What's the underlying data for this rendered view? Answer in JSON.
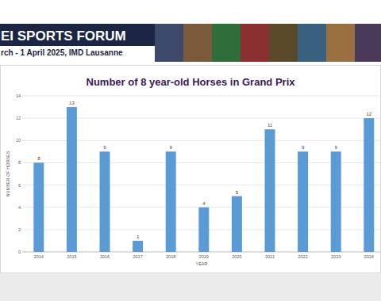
{
  "banner": {
    "title": "EI SPORTS FORUM",
    "subtitle": "rch - 1 April 2025, IMD Lausanne"
  },
  "chart_data": {
    "type": "bar",
    "title": "Number of 8 year-old Horses in Grand Prix",
    "x_label": "YEAR",
    "y_label": "NUMBER OF HORSES",
    "categories": [
      "2014",
      "2015",
      "2016",
      "2017",
      "2018",
      "2019",
      "2020",
      "2021",
      "2022",
      "2023",
      "2024"
    ],
    "values": [
      8,
      13,
      9,
      1,
      9,
      4,
      5,
      11,
      9,
      9,
      12
    ],
    "color": "#5b9bd5",
    "ylim": [
      0,
      14
    ],
    "yticks": [
      0,
      2,
      4,
      6,
      8,
      10,
      12,
      14
    ],
    "grid": true,
    "data_labels": true
  }
}
